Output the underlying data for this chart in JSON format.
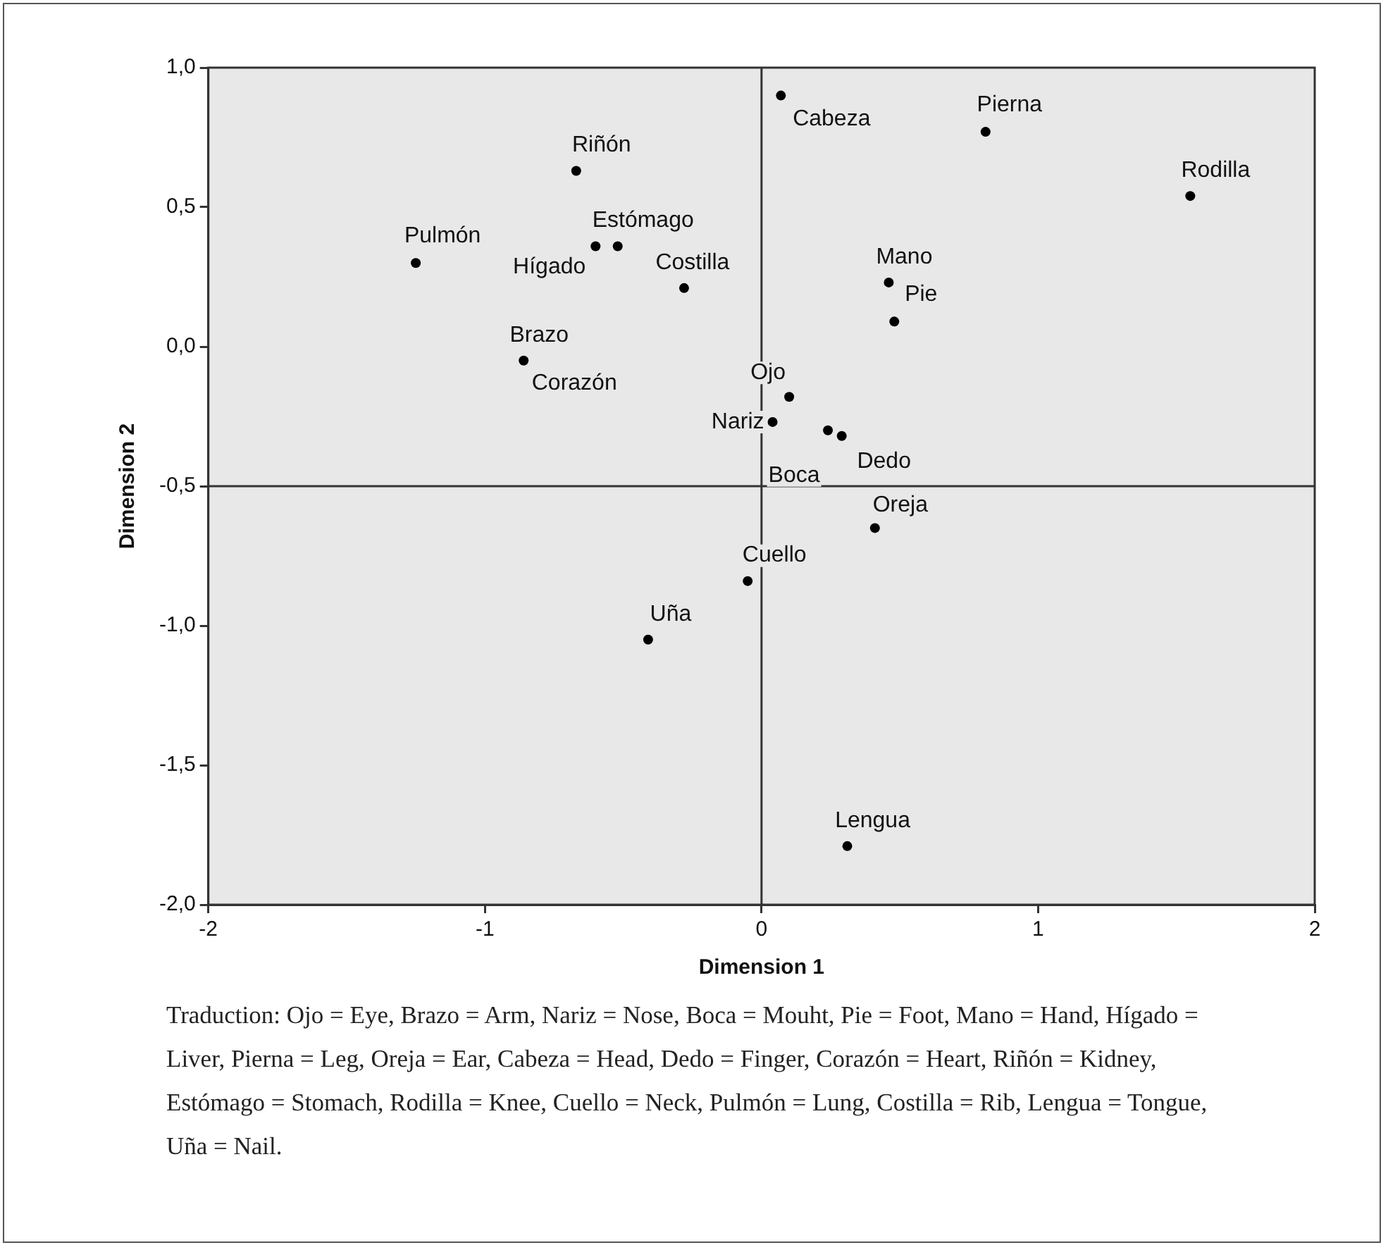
{
  "chart_data": {
    "type": "scatter",
    "xlabel": "Dimension 1",
    "ylabel": "Dimension 2",
    "series": [
      {
        "color": "#000000",
        "x": [
          0.1,
          -0.86,
          0.04,
          0.24,
          0.48,
          0.46,
          -0.6,
          0.81,
          0.41,
          0.07,
          0.29,
          -0.67,
          -0.52,
          1.55,
          -0.05,
          -1.25,
          -0.28,
          0.31,
          -0.41
        ],
        "values": [
          -0.18,
          -0.05,
          -0.27,
          -0.3,
          0.09,
          0.23,
          0.36,
          0.77,
          -0.65,
          0.9,
          -0.32,
          0.63,
          0.36,
          0.54,
          -0.84,
          0.3,
          0.21,
          -1.79,
          -1.05
        ]
      }
    ],
    "xlim": [
      -2,
      2
    ],
    "xticks": [
      -2,
      -1,
      0,
      1,
      2
    ],
    "ylim": [
      -2,
      1
    ],
    "yticks": [
      {
        "value": -2,
        "label": "-2,0"
      },
      {
        "value": -1.5,
        "label": "-1,5"
      },
      {
        "value": -1,
        "label": "-1,0"
      },
      {
        "value": -0.5,
        "label": "-0,5"
      },
      {
        "value": 0,
        "label": "0,0"
      },
      {
        "value": 0.5,
        "label": "0,5"
      },
      {
        "value": 1,
        "label": "1,0"
      }
    ],
    "grid": false,
    "legend": false,
    "marker": "circle",
    "ref_lines": [
      {
        "axis": "x",
        "value": 0
      },
      {
        "axis": "y",
        "value": -0.5
      }
    ],
    "annotations": [
      {
        "text": "Ojo",
        "x": 0.1,
        "y": -0.18
      },
      {
        "text": "Brazo",
        "x": -0.86,
        "y": -0.05
      },
      {
        "text": "Corazón",
        "x": -0.86,
        "y": -0.05
      },
      {
        "text": "Nariz",
        "x": 0.04,
        "y": -0.27
      },
      {
        "text": "Boca",
        "x": 0.24,
        "y": -0.3
      },
      {
        "text": "Pie",
        "x": 0.48,
        "y": 0.09
      },
      {
        "text": "Mano",
        "x": 0.46,
        "y": 0.23
      },
      {
        "text": "Hígado",
        "x": -0.6,
        "y": 0.36
      },
      {
        "text": "Pierna",
        "x": 0.81,
        "y": 0.77
      },
      {
        "text": "Oreja",
        "x": 0.41,
        "y": -0.65
      },
      {
        "text": "Cabeza",
        "x": 0.07,
        "y": 0.9
      },
      {
        "text": "Dedo",
        "x": 0.29,
        "y": -0.32
      },
      {
        "text": "Riñón",
        "x": -0.67,
        "y": 0.63
      },
      {
        "text": "Estómago",
        "x": -0.52,
        "y": 0.36
      },
      {
        "text": "Rodilla",
        "x": 1.55,
        "y": 0.54
      },
      {
        "text": "Cuello",
        "x": -0.05,
        "y": -0.84
      },
      {
        "text": "Pulmón",
        "x": -1.25,
        "y": 0.3
      },
      {
        "text": "Costilla",
        "x": -0.28,
        "y": 0.21
      },
      {
        "text": "Lengua",
        "x": 0.31,
        "y": -1.79
      },
      {
        "text": "Uña",
        "x": -0.41,
        "y": -1.05
      },
      "Traduction: Ojo = Eye, Brazo = Arm, Nariz = Nose, Boca = Mouht, Pie = Foot, Mano = Hand, Hígado = Liver, Pierna = Leg, Oreja = Ear, Cabeza = Head, Dedo = Finger, Corazón = Heart, Riñón = Kidney, Estómago = Stomach, Rodilla = Knee, Cuello = Neck, Pulmón = Lung, Costilla = Rib, Lengua = Tongue, Uña = Nail."
    ]
  }
}
